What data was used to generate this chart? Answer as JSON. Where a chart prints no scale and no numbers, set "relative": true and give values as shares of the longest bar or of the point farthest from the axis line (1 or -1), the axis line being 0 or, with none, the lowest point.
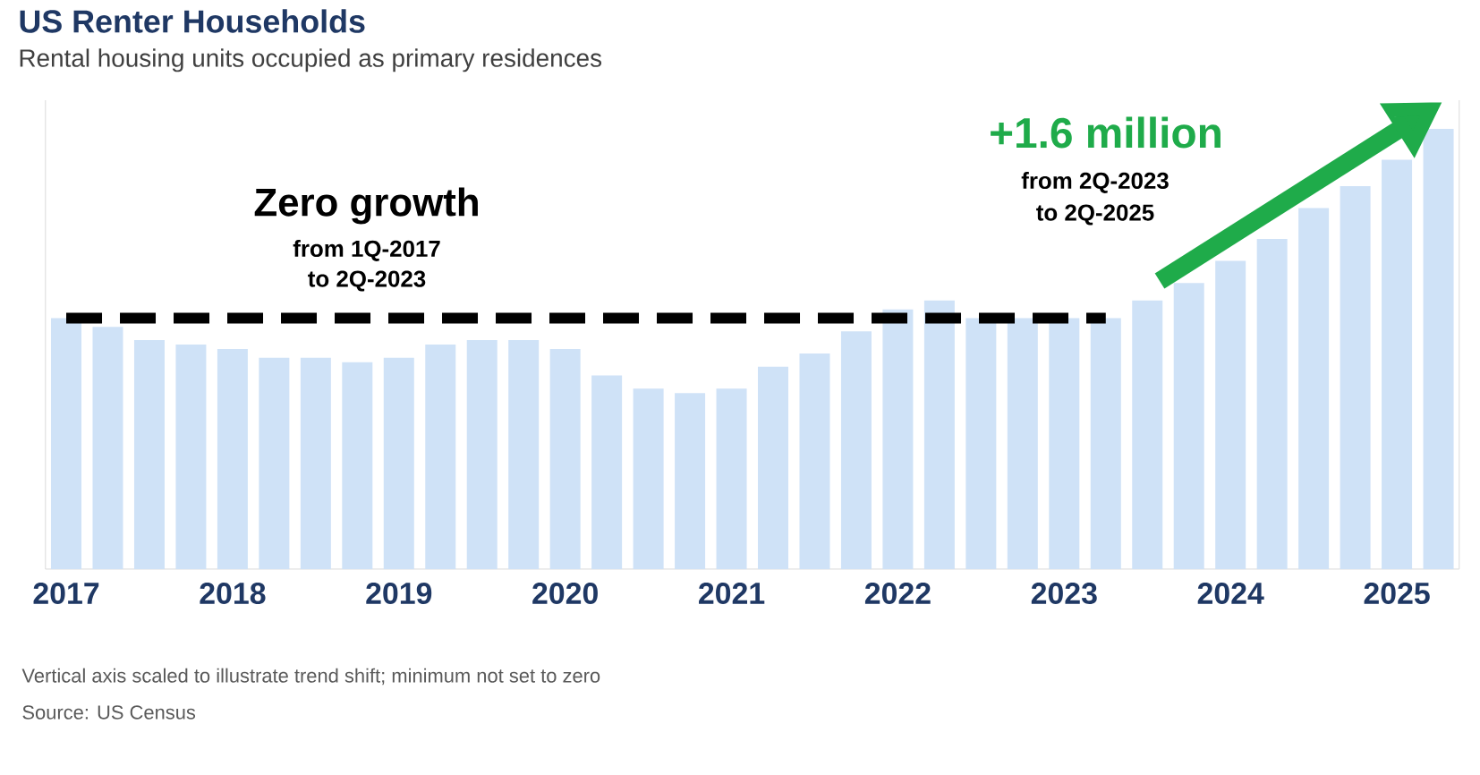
{
  "chart_data": {
    "type": "bar",
    "title": "US Renter Households",
    "subtitle": "Rental housing units occupied as primary residences",
    "categories": [
      "2017",
      null,
      null,
      null,
      "2018",
      null,
      null,
      null,
      "2019",
      null,
      null,
      null,
      "2020",
      null,
      null,
      null,
      "2021",
      null,
      null,
      null,
      "2022",
      null,
      null,
      null,
      "2023",
      null,
      null,
      null,
      "2024",
      null,
      null,
      null,
      "2025",
      null
    ],
    "relative": true,
    "series": [
      {
        "color": "#cfe2f7",
        "values": [
          0.57,
          0.55,
          0.52,
          0.51,
          0.5,
          0.48,
          0.48,
          0.47,
          0.48,
          0.51,
          0.52,
          0.52,
          0.5,
          0.44,
          0.41,
          0.4,
          0.41,
          0.46,
          0.49,
          0.54,
          0.59,
          0.61,
          0.57,
          0.57,
          0.57,
          0.57,
          0.61,
          0.65,
          0.7,
          0.75,
          0.82,
          0.87,
          0.93,
          1
        ]
      },
      {
        "type": "line",
        "color": "#000000",
        "line_style": "dashed",
        "values": [
          0.57,
          0.57,
          0.57,
          0.57,
          0.57,
          0.57,
          0.57,
          0.57,
          0.57,
          0.57,
          0.57,
          0.57,
          0.57,
          0.57,
          0.57,
          0.57,
          0.57,
          0.57,
          0.57,
          0.57,
          0.57,
          0.57,
          0.57,
          0.57,
          0.57,
          0.57,
          null,
          null,
          null,
          null,
          null,
          null,
          null,
          null
        ]
      }
    ],
    "annotations": [
      "Zero growth",
      "from 1Q-2017",
      "to 2Q-2023",
      "+1.6 million",
      "from 2Q-2023",
      "to 2Q-2025",
      "Vertical axis scaled to illustrate trend shift; minimum not set to zero",
      "Source: US Census"
    ]
  }
}
